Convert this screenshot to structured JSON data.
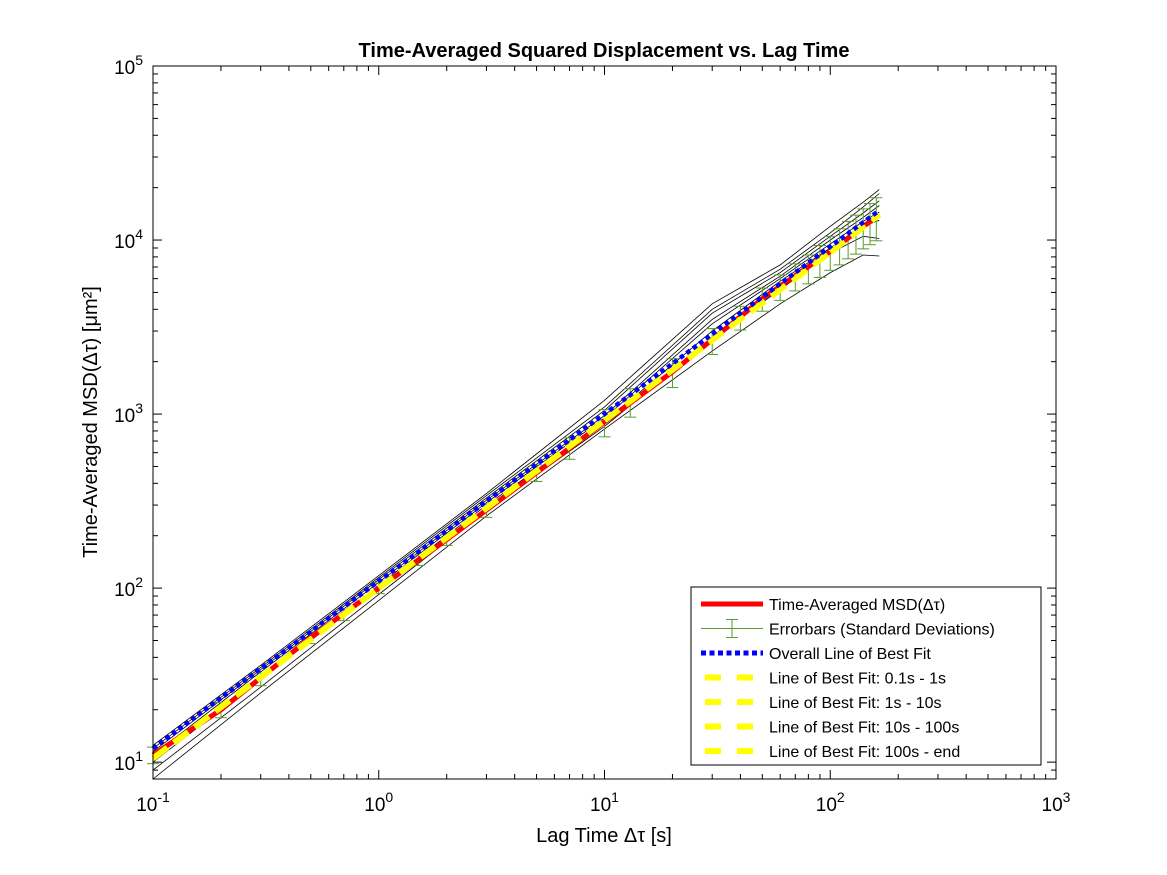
{
  "chart_data": {
    "type": "line",
    "title": "Time-Averaged Squared Displacement vs. Lag Time",
    "xlabel": "Lag Time Δτ [s]",
    "ylabel": "Time-Averaged MSD(Δτ) [μm²]",
    "xscale": "log",
    "yscale": "log",
    "xlim": [
      0.1,
      1000
    ],
    "ylim": [
      8,
      100000
    ],
    "x_ticks": [
      {
        "value": 0.1,
        "base": "10",
        "exp": "-1"
      },
      {
        "value": 1,
        "base": "10",
        "exp": "0"
      },
      {
        "value": 10,
        "base": "10",
        "exp": "1"
      },
      {
        "value": 100,
        "base": "10",
        "exp": "2"
      },
      {
        "value": 1000,
        "base": "10",
        "exp": "3"
      }
    ],
    "y_ticks": [
      {
        "value": 10,
        "base": "10",
        "exp": "1"
      },
      {
        "value": 100,
        "base": "10",
        "exp": "2"
      },
      {
        "value": 1000,
        "base": "10",
        "exp": "3"
      },
      {
        "value": 10000,
        "base": "10",
        "exp": "4"
      },
      {
        "value": 100000,
        "base": "10",
        "exp": "5"
      }
    ],
    "legend_position": "bottom-right",
    "legend": [
      {
        "label": "Time-Averaged MSD(Δτ)",
        "style": "solid-thick",
        "color": "#ff0000"
      },
      {
        "label": "Errorbars (Standard Deviations)",
        "style": "errorbar",
        "color": "#5b9a2e"
      },
      {
        "label": "Overall Line of Best Fit",
        "style": "dotted",
        "color": "#0000ff"
      },
      {
        "label": "Line of Best Fit: 0.1s - 1s",
        "style": "dashed",
        "color": "#ffff00"
      },
      {
        "label": "Line of Best Fit: 1s - 10s",
        "style": "dashed",
        "color": "#ffff00"
      },
      {
        "label": "Line of Best Fit: 10s - 100s",
        "style": "dashed",
        "color": "#ffff00"
      },
      {
        "label": "Line of Best Fit: 100s - end",
        "style": "dashed",
        "color": "#ffff00"
      }
    ],
    "series": [
      {
        "name": "Time-Averaged MSD(Δτ)",
        "color": "#ff0000",
        "x": [
          0.1,
          0.2,
          0.5,
          1,
          2,
          5,
          10,
          20,
          50,
          100,
          165
        ],
        "y": [
          11,
          20,
          52,
          100,
          190,
          460,
          900,
          1750,
          4600,
          8600,
          14000
        ]
      },
      {
        "name": "Overall Line of Best Fit",
        "color": "#0000ff",
        "x": [
          0.1,
          165
        ],
        "y": [
          12,
          14800
        ]
      },
      {
        "name": "Line of Best Fit: 0.1s - 1s",
        "color": "#ffff00",
        "x": [
          0.1,
          1
        ],
        "y": [
          10.5,
          100
        ]
      },
      {
        "name": "Line of Best Fit: 1s - 10s",
        "color": "#ffff00",
        "x": [
          1,
          10
        ],
        "y": [
          100,
          920
        ]
      },
      {
        "name": "Line of Best Fit: 10s - 100s",
        "color": "#ffff00",
        "x": [
          10,
          100
        ],
        "y": [
          920,
          8500
        ]
      },
      {
        "name": "Line of Best Fit: 100s - end",
        "color": "#ffff00",
        "x": [
          100,
          165
        ],
        "y": [
          8500,
          14000
        ]
      }
    ],
    "errorbars": {
      "color": "#5b9a2e",
      "x": [
        0.1,
        0.2,
        0.3,
        0.5,
        0.7,
        1,
        1.5,
        2,
        3,
        5,
        7,
        10,
        13,
        20,
        30,
        40,
        50,
        60,
        70,
        80,
        90,
        100,
        110,
        120,
        130,
        140,
        150,
        160
      ],
      "y": [
        11,
        20,
        30,
        52,
        70,
        100,
        145,
        190,
        280,
        460,
        640,
        900,
        1180,
        1750,
        2650,
        3600,
        4600,
        5400,
        6200,
        6900,
        7700,
        8600,
        9400,
        10300,
        11100,
        12000,
        12800,
        13700
      ],
      "sd": [
        1.2,
        2,
        2.5,
        4,
        5,
        7,
        10,
        14,
        25,
        50,
        90,
        160,
        220,
        330,
        450,
        560,
        700,
        900,
        1100,
        1300,
        1600,
        1900,
        2200,
        2500,
        2800,
        3100,
        3400,
        3800
      ]
    },
    "trajectories": {
      "color": "#000000",
      "x": [
        0.1,
        0.3,
        1,
        3,
        10,
        30,
        60,
        100,
        140,
        165
      ],
      "curves": [
        [
          8,
          25,
          85,
          260,
          820,
          2300,
          4300,
          6500,
          8200,
          8100
        ],
        [
          9,
          27,
          92,
          280,
          850,
          2700,
          5200,
          8400,
          10500,
          10200
        ],
        [
          10,
          30,
          100,
          300,
          900,
          3000,
          5800,
          9000,
          12000,
          13000
        ],
        [
          10.5,
          31,
          104,
          310,
          950,
          3300,
          6000,
          9500,
          12800,
          14500
        ],
        [
          11,
          33,
          108,
          320,
          980,
          3500,
          6200,
          10000,
          13500,
          15800
        ],
        [
          11.5,
          34,
          112,
          330,
          1050,
          3800,
          6500,
          10500,
          14300,
          16800
        ],
        [
          12,
          35,
          115,
          340,
          1100,
          4000,
          6800,
          11000,
          15500,
          18500
        ],
        [
          12.5,
          36,
          118,
          350,
          1200,
          4300,
          7200,
          12000,
          16500,
          19500
        ]
      ]
    }
  }
}
